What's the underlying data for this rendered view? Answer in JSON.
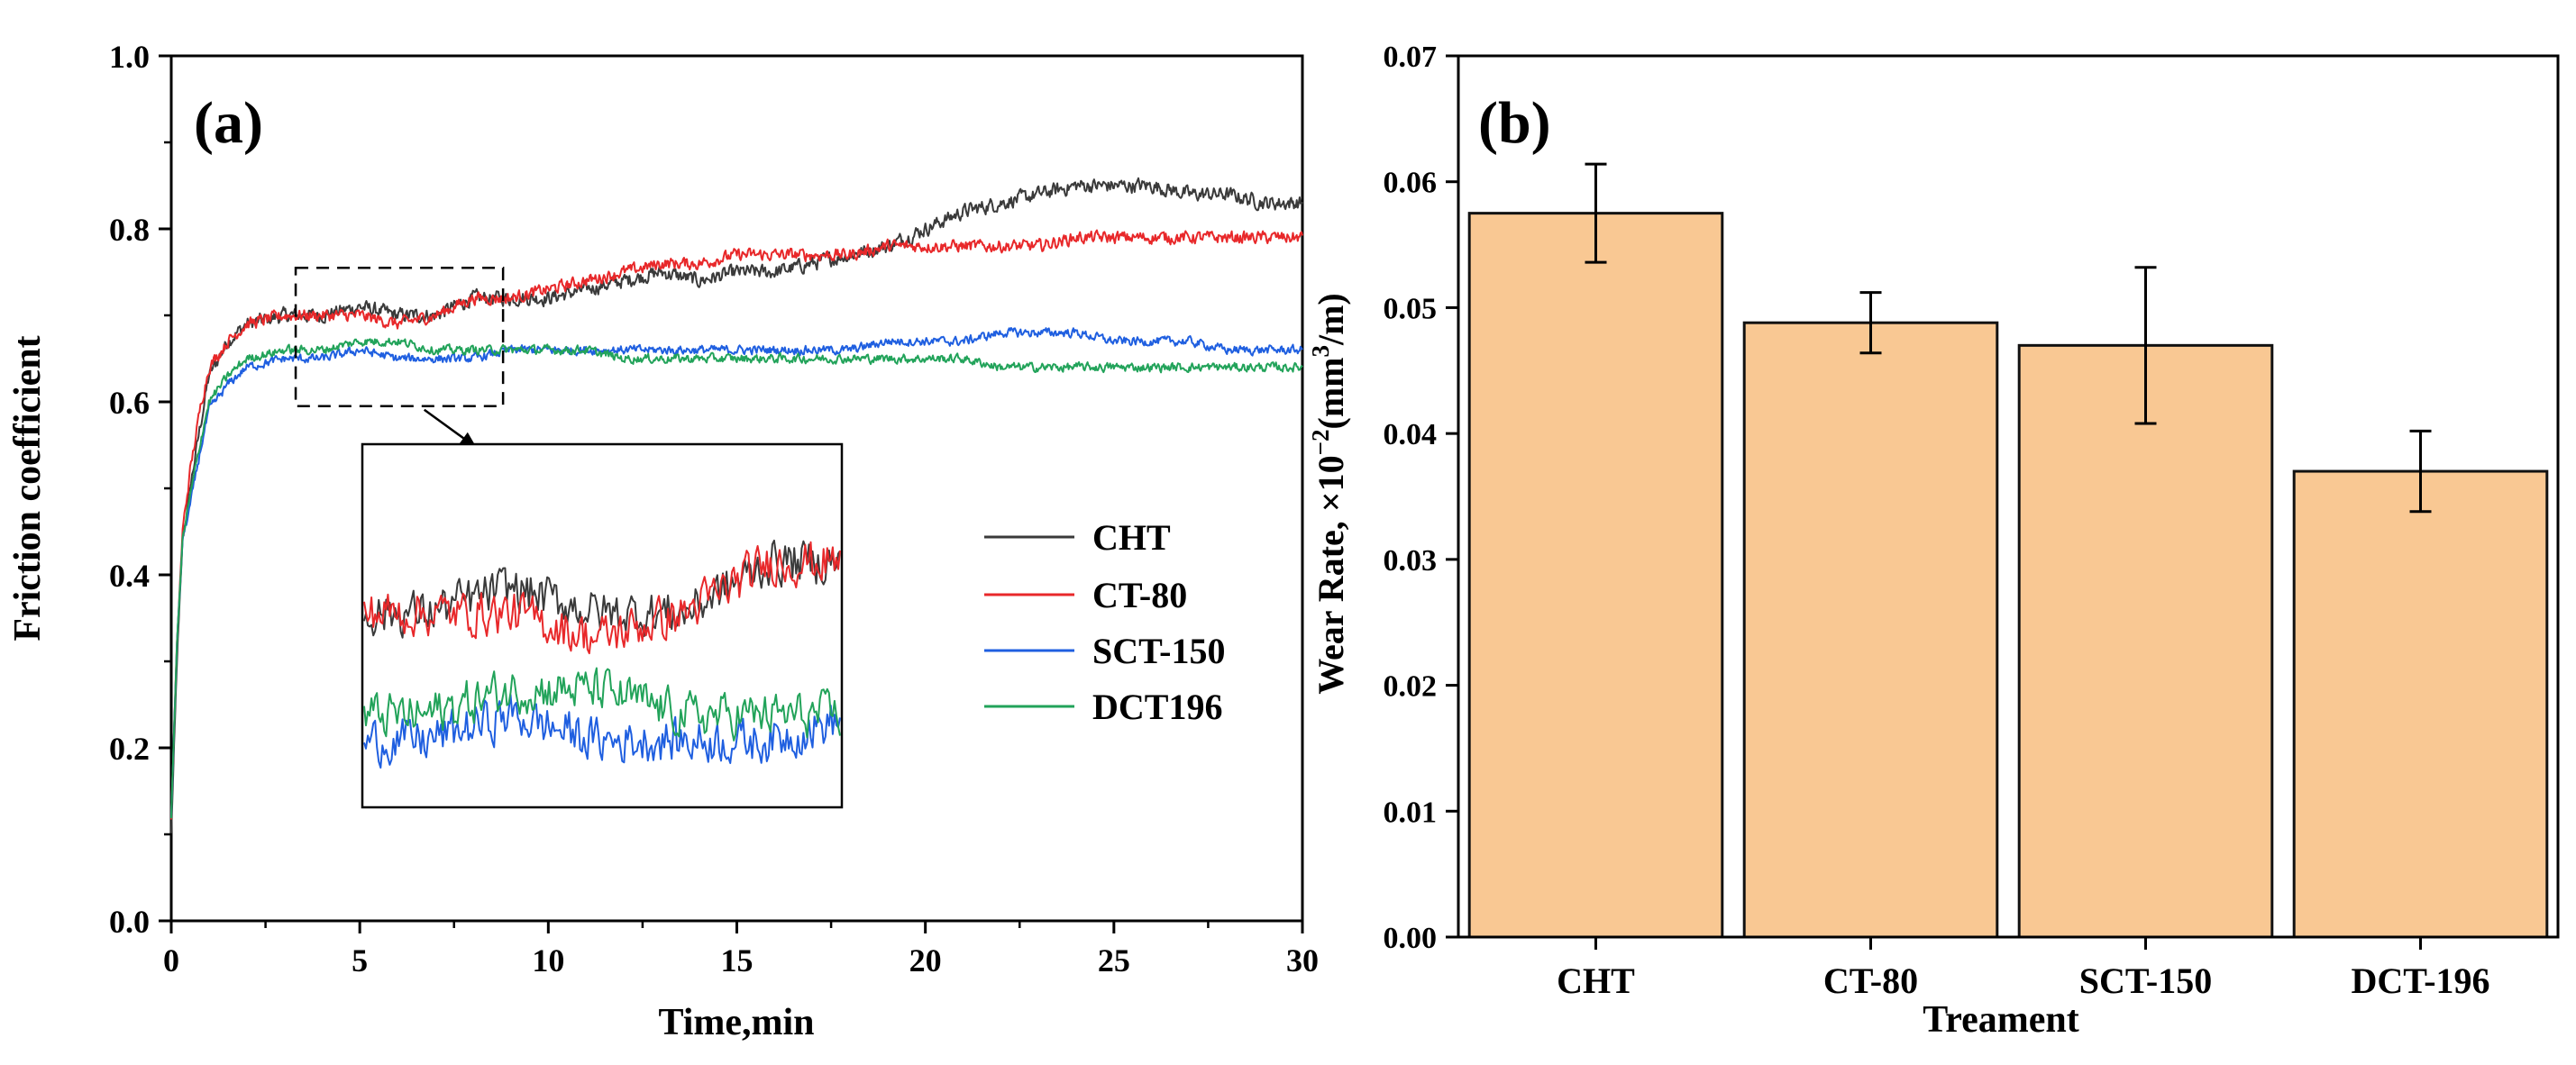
{
  "colors": {
    "CHT": "#3a3a3a",
    "CT-80": "#e8282a",
    "SCT-150": "#1f5fe0",
    "DCT196": "#22a35a",
    "bar_fill": "#f9c893",
    "bar_stroke": "#111111",
    "axis": "#000000"
  },
  "chart_data": [
    {
      "panel": "(a)",
      "type": "line",
      "xlabel": "Time,min",
      "ylabel": "Friction coefficient",
      "xlim": [
        0,
        30
      ],
      "ylim": [
        0.0,
        1.0
      ],
      "xticks": [
        "0",
        "5",
        "10",
        "15",
        "20",
        "25",
        "30"
      ],
      "yticks": [
        "0.0",
        "0.2",
        "0.4",
        "0.6",
        "0.8",
        "1.0"
      ],
      "grid": false,
      "legend_position": "right-middle",
      "series": [
        {
          "name": "CHT",
          "key": "CHT",
          "x": [
            0,
            0.15,
            0.3,
            0.5,
            0.8,
            1,
            1.5,
            2,
            3,
            4,
            5,
            6,
            7,
            8,
            9,
            10,
            11,
            12,
            13,
            14,
            15,
            16,
            17,
            18,
            19,
            20,
            21,
            22,
            23,
            24,
            25,
            26,
            27,
            28,
            29,
            30
          ],
          "y": [
            0.1,
            0.3,
            0.44,
            0.5,
            0.58,
            0.63,
            0.67,
            0.69,
            0.7,
            0.7,
            0.71,
            0.7,
            0.7,
            0.72,
            0.72,
            0.72,
            0.73,
            0.74,
            0.75,
            0.74,
            0.75,
            0.75,
            0.76,
            0.77,
            0.78,
            0.8,
            0.82,
            0.83,
            0.84,
            0.85,
            0.85,
            0.85,
            0.84,
            0.84,
            0.83,
            0.83
          ]
        },
        {
          "name": "CT-80",
          "key": "CT-80",
          "x": [
            0,
            0.15,
            0.3,
            0.5,
            0.8,
            1,
            1.5,
            2,
            3,
            4,
            5,
            6,
            7,
            8,
            9,
            10,
            11,
            12,
            13,
            14,
            15,
            16,
            17,
            18,
            19,
            20,
            21,
            22,
            23,
            24,
            25,
            26,
            27,
            28,
            29,
            30
          ],
          "y": [
            0.12,
            0.32,
            0.45,
            0.52,
            0.6,
            0.64,
            0.67,
            0.69,
            0.7,
            0.7,
            0.7,
            0.69,
            0.7,
            0.72,
            0.72,
            0.73,
            0.74,
            0.75,
            0.76,
            0.76,
            0.77,
            0.77,
            0.77,
            0.77,
            0.78,
            0.78,
            0.78,
            0.78,
            0.78,
            0.79,
            0.79,
            0.79,
            0.79,
            0.79,
            0.79,
            0.79
          ]
        },
        {
          "name": "SCT-150",
          "key": "SCT-150",
          "x": [
            0,
            0.15,
            0.3,
            0.5,
            0.8,
            1,
            1.5,
            2,
            3,
            4,
            5,
            6,
            7,
            8,
            9,
            10,
            11,
            12,
            13,
            14,
            15,
            16,
            17,
            18,
            19,
            20,
            21,
            22,
            23,
            24,
            25,
            26,
            27,
            28,
            29,
            30
          ],
          "y": [
            0.12,
            0.32,
            0.44,
            0.48,
            0.55,
            0.59,
            0.62,
            0.64,
            0.65,
            0.65,
            0.66,
            0.65,
            0.65,
            0.65,
            0.66,
            0.66,
            0.66,
            0.66,
            0.66,
            0.66,
            0.66,
            0.66,
            0.66,
            0.66,
            0.67,
            0.67,
            0.67,
            0.68,
            0.68,
            0.68,
            0.67,
            0.67,
            0.67,
            0.66,
            0.66,
            0.66
          ]
        },
        {
          "name": "DCT196",
          "key": "DCT196",
          "x": [
            0,
            0.15,
            0.3,
            0.5,
            0.8,
            1,
            1.5,
            2,
            3,
            4,
            5,
            6,
            7,
            8,
            9,
            10,
            11,
            12,
            13,
            14,
            15,
            16,
            17,
            18,
            19,
            20,
            21,
            22,
            23,
            24,
            25,
            26,
            27,
            28,
            29,
            30
          ],
          "y": [
            0.12,
            0.32,
            0.44,
            0.49,
            0.56,
            0.6,
            0.63,
            0.65,
            0.66,
            0.66,
            0.67,
            0.67,
            0.66,
            0.66,
            0.66,
            0.66,
            0.66,
            0.65,
            0.65,
            0.65,
            0.65,
            0.65,
            0.65,
            0.65,
            0.65,
            0.65,
            0.65,
            0.64,
            0.64,
            0.64,
            0.64,
            0.64,
            0.64,
            0.64,
            0.64,
            0.64
          ]
        }
      ],
      "zoom_region": {
        "xlim": [
          3.3,
          8.8
        ],
        "ylim": [
          0.595,
          0.755
        ]
      }
    },
    {
      "panel": "(b)",
      "type": "bar",
      "xlabel": "Treament",
      "ylabel_main": "Wear Rate, ×10",
      "ylabel_sup1": "−2",
      "ylabel_mid": "(mm",
      "ylabel_sup2": "3",
      "ylabel_end": "/m)",
      "categories": [
        "CHT",
        "CT-80",
        "SCT-150",
        "DCT-196"
      ],
      "values": [
        0.0575,
        0.0488,
        0.047,
        0.037
      ],
      "errors": [
        0.0039,
        0.0024,
        0.0062,
        0.0032
      ],
      "ylim": [
        0.0,
        0.07
      ],
      "yticks": [
        "0.00",
        "0.01",
        "0.02",
        "0.03",
        "0.04",
        "0.05",
        "0.06",
        "0.07"
      ],
      "grid": false
    }
  ]
}
